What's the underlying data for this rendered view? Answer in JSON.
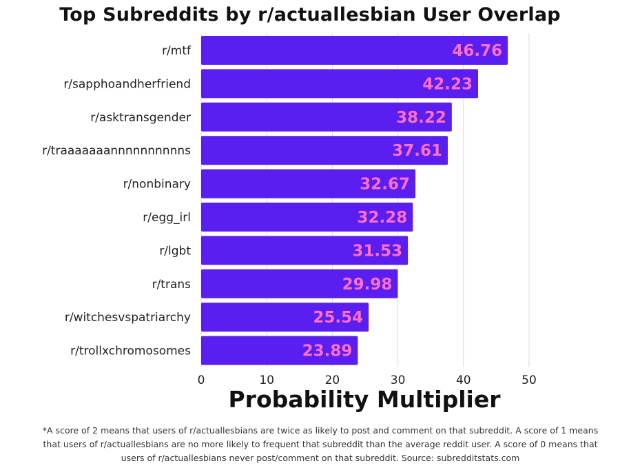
{
  "chart_data": {
    "type": "bar",
    "orientation": "horizontal",
    "title": "Top Subreddits by r/actuallesbian User Overlap",
    "xlabel": "Probability Multiplier",
    "categories": [
      "r/mtf",
      "r/sapphoandherfriend",
      "r/asktransgender",
      "r/traaaaaaannnnnnnnnns",
      "r/nonbinary",
      "r/egg_irl",
      "r/lgbt",
      "r/trans",
      "r/witchesvspatriarchy",
      "r/trollxchromosomes"
    ],
    "values": [
      46.76,
      42.23,
      38.22,
      37.61,
      32.67,
      32.28,
      31.53,
      29.98,
      25.54,
      23.89
    ],
    "value_labels": [
      "46.76",
      "42.23",
      "38.22",
      "37.61",
      "32.67",
      "32.28",
      "31.53",
      "29.98",
      "25.54",
      "23.89"
    ],
    "xlim": [
      0,
      50
    ],
    "x_ticks": [
      0,
      10,
      20,
      30,
      40,
      50
    ],
    "x_tick_labels": [
      "0",
      "10",
      "20",
      "30",
      "40",
      "50"
    ],
    "grid": "vertical",
    "colors": {
      "bar": "#5a1ff0",
      "value_label": "#ff6ec7",
      "grid": "#d9d9d9"
    }
  },
  "footnote": "*A score of 2 means that users of r/actuallesbians are twice as likely to post and comment on that subreddit. A score of 1 means that users of r/actuallesbians are no more likely to frequent that subreddit than the average reddit user. A score of 0 means that users of r/actuallesbians never post/comment on that subreddit. Source: subredditstats.com"
}
